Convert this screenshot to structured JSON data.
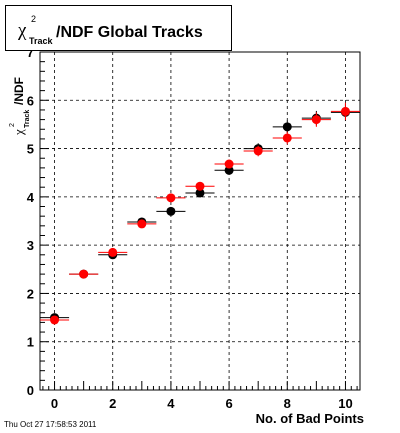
{
  "chart_data": {
    "type": "scatter",
    "title_parts": {
      "symbol": "χ",
      "superscript": "2",
      "subscript": "Track",
      "rest": "/NDF  Global Tracks"
    },
    "ylabel_parts": {
      "symbol": "χ",
      "superscript": "2",
      "subscript": "Track",
      "rest": "/NDF"
    },
    "xlabel": "No. of Bad Points",
    "xlim": [
      -0.5,
      10.5
    ],
    "ylim": [
      0,
      7
    ],
    "x_ticks": [
      0,
      2,
      4,
      6,
      8,
      10
    ],
    "y_ticks": [
      0,
      1,
      2,
      3,
      4,
      5,
      6,
      7
    ],
    "grid": true,
    "series": [
      {
        "color": "#000000",
        "x": [
          0,
          1,
          2,
          3,
          4,
          5,
          6,
          7,
          8,
          9,
          10
        ],
        "y": [
          1.5,
          2.4,
          2.8,
          3.48,
          3.7,
          4.08,
          4.55,
          5.0,
          5.45,
          5.63,
          5.75
        ],
        "yerr": [
          0.04,
          0.04,
          0.05,
          0.05,
          0.06,
          0.07,
          0.09,
          0.11,
          0.13,
          0.15,
          0.18
        ]
      },
      {
        "color": "#ff0000",
        "x": [
          0,
          1,
          2,
          3,
          4,
          5,
          6,
          7,
          8,
          9,
          10
        ],
        "y": [
          1.45,
          2.4,
          2.85,
          3.44,
          3.98,
          4.22,
          4.68,
          4.95,
          5.22,
          5.6,
          5.77
        ],
        "yerr": [
          0.04,
          0.04,
          0.05,
          0.05,
          0.06,
          0.07,
          0.09,
          0.11,
          0.13,
          0.15,
          0.18
        ]
      }
    ]
  },
  "footer": "Thu Oct 27 17:58:53 2011"
}
